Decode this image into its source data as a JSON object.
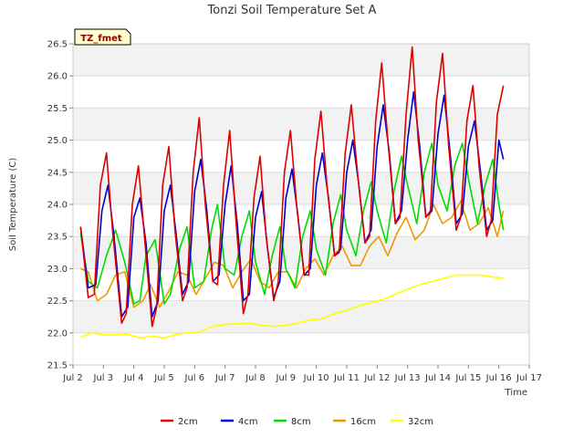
{
  "chart_data": {
    "type": "line",
    "title": "Tonzi Soil Temperature Set A",
    "xlabel": "Time",
    "ylabel": "Soil Temperature (C)",
    "xlim": [
      2,
      17
    ],
    "ylim": [
      21.5,
      26.5
    ],
    "x_ticks": [
      2,
      3,
      4,
      5,
      6,
      7,
      8,
      9,
      10,
      11,
      12,
      13,
      14,
      15,
      16,
      17
    ],
    "x_tick_labels": [
      "Jul 2",
      "Jul 3",
      "Jul 4",
      "Jul 5",
      "Jul 6",
      "Jul 7",
      "Jul 8",
      "Jul 9",
      "Jul 10",
      "Jul 11",
      "Jul 12",
      "Jul 13",
      "Jul 14",
      "Jul 15",
      "Jul 16",
      "Jul 17"
    ],
    "y_ticks": [
      21.5,
      22.0,
      22.5,
      23.0,
      23.5,
      24.0,
      24.5,
      25.0,
      25.5,
      26.0,
      26.5
    ],
    "y_tick_labels": [
      "21.5",
      "22.0",
      "22.5",
      "23.0",
      "23.5",
      "24.0",
      "24.5",
      "25.0",
      "25.5",
      "26.0",
      "26.5"
    ],
    "grid": true,
    "legend_position": "bottom",
    "annotation": "TZ_fmet",
    "series": [
      {
        "name": "2cm",
        "color": "#dd0000",
        "x": [
          2.25,
          2.5,
          2.7,
          2.9,
          3.1,
          3.3,
          3.6,
          3.75,
          3.95,
          4.15,
          4.35,
          4.6,
          4.75,
          4.95,
          5.15,
          5.35,
          5.6,
          5.75,
          5.95,
          6.15,
          6.35,
          6.6,
          6.75,
          6.95,
          7.15,
          7.35,
          7.6,
          7.75,
          7.95,
          8.15,
          8.35,
          8.6,
          8.75,
          8.95,
          9.15,
          9.35,
          9.6,
          9.75,
          9.95,
          10.15,
          10.35,
          10.6,
          10.75,
          10.95,
          11.15,
          11.35,
          11.6,
          11.75,
          11.95,
          12.15,
          12.35,
          12.6,
          12.75,
          12.95,
          13.15,
          13.35,
          13.6,
          13.75,
          13.95,
          14.15,
          14.35,
          14.6,
          14.75,
          14.95,
          15.15,
          15.35,
          15.6,
          15.75,
          15.95,
          16.15
        ],
        "y": [
          23.65,
          22.55,
          22.6,
          24.3,
          24.8,
          23.6,
          22.15,
          22.3,
          24.0,
          24.6,
          23.5,
          22.1,
          22.4,
          24.3,
          24.9,
          23.6,
          22.5,
          22.7,
          24.5,
          25.35,
          24.0,
          22.8,
          22.75,
          24.3,
          25.15,
          23.8,
          22.3,
          22.6,
          24.1,
          24.75,
          23.5,
          22.5,
          22.8,
          24.5,
          25.15,
          24.0,
          22.9,
          22.9,
          24.7,
          25.45,
          24.3,
          23.2,
          23.25,
          24.8,
          25.55,
          24.5,
          23.4,
          23.5,
          25.3,
          26.2,
          25.0,
          23.7,
          23.8,
          25.4,
          26.45,
          25.0,
          23.8,
          23.9,
          25.6,
          26.35,
          24.9,
          23.6,
          23.8,
          25.3,
          25.85,
          24.6,
          23.5,
          23.75,
          25.4,
          25.85
        ]
      },
      {
        "name": "4cm",
        "color": "#0000cc",
        "x": [
          2.25,
          2.5,
          2.75,
          2.95,
          3.15,
          3.35,
          3.6,
          3.8,
          4.0,
          4.2,
          4.4,
          4.6,
          4.8,
          5.0,
          5.2,
          5.4,
          5.6,
          5.8,
          6.0,
          6.2,
          6.4,
          6.6,
          6.8,
          7.0,
          7.2,
          7.4,
          7.6,
          7.8,
          8.0,
          8.2,
          8.4,
          8.6,
          8.8,
          9.0,
          9.2,
          9.4,
          9.6,
          9.8,
          10.0,
          10.2,
          10.4,
          10.6,
          10.8,
          11.0,
          11.2,
          11.4,
          11.6,
          11.8,
          12.0,
          12.2,
          12.4,
          12.6,
          12.8,
          13.0,
          13.2,
          13.4,
          13.6,
          13.8,
          14.0,
          14.2,
          14.4,
          14.6,
          14.8,
          15.0,
          15.2,
          15.4,
          15.6,
          15.8,
          16.0,
          16.15
        ],
        "y": [
          23.65,
          22.7,
          22.75,
          23.9,
          24.3,
          23.5,
          22.25,
          22.4,
          23.8,
          24.1,
          23.4,
          22.25,
          22.5,
          23.9,
          24.3,
          23.5,
          22.6,
          22.8,
          24.2,
          24.7,
          23.9,
          22.8,
          22.9,
          24.0,
          24.6,
          23.7,
          22.5,
          22.6,
          23.8,
          24.2,
          23.3,
          22.55,
          22.8,
          24.1,
          24.55,
          23.8,
          22.9,
          23.0,
          24.3,
          24.8,
          24.1,
          23.2,
          23.3,
          24.5,
          25.0,
          24.3,
          23.4,
          23.6,
          24.9,
          25.55,
          24.8,
          23.7,
          23.9,
          25.0,
          25.75,
          24.9,
          23.8,
          23.9,
          25.1,
          25.7,
          24.8,
          23.7,
          23.85,
          24.9,
          25.3,
          24.5,
          23.6,
          23.75,
          25.0,
          24.7
        ]
      },
      {
        "name": "8cm",
        "color": "#00dd00",
        "x": [
          2.25,
          2.5,
          2.8,
          3.1,
          3.4,
          3.7,
          4.0,
          4.2,
          4.4,
          4.7,
          5.0,
          5.2,
          5.5,
          5.75,
          6.0,
          6.3,
          6.55,
          6.75,
          7.0,
          7.3,
          7.55,
          7.8,
          8.0,
          8.3,
          8.55,
          8.8,
          9.0,
          9.3,
          9.55,
          9.8,
          10.0,
          10.3,
          10.55,
          10.8,
          11.0,
          11.3,
          11.55,
          11.8,
          12.0,
          12.3,
          12.55,
          12.8,
          13.0,
          13.3,
          13.55,
          13.8,
          14.0,
          14.3,
          14.55,
          14.8,
          15.0,
          15.3,
          15.55,
          15.8,
          16.0,
          16.15
        ],
        "y": [
          23.55,
          22.8,
          22.7,
          23.2,
          23.6,
          23.1,
          22.45,
          22.5,
          23.2,
          23.45,
          22.45,
          22.6,
          23.3,
          23.65,
          22.7,
          22.8,
          23.6,
          24.0,
          23.0,
          22.9,
          23.5,
          23.9,
          23.1,
          22.6,
          23.2,
          23.65,
          23.0,
          22.7,
          23.5,
          23.9,
          23.3,
          22.9,
          23.7,
          24.15,
          23.6,
          23.2,
          23.9,
          24.35,
          23.9,
          23.4,
          24.2,
          24.75,
          24.3,
          23.7,
          24.5,
          24.95,
          24.3,
          23.9,
          24.6,
          24.95,
          24.4,
          23.7,
          24.3,
          24.7,
          24.0,
          23.6
        ]
      },
      {
        "name": "16cm",
        "color": "#ee9900",
        "x": [
          2.25,
          2.5,
          2.8,
          3.1,
          3.4,
          3.7,
          4.0,
          4.3,
          4.55,
          4.85,
          5.15,
          5.45,
          5.75,
          6.05,
          6.35,
          6.65,
          6.95,
          7.25,
          7.55,
          7.85,
          8.15,
          8.45,
          8.75,
          9.05,
          9.35,
          9.65,
          9.95,
          10.25,
          10.55,
          10.85,
          11.15,
          11.45,
          11.75,
          12.05,
          12.35,
          12.65,
          12.95,
          13.25,
          13.55,
          13.85,
          14.15,
          14.45,
          14.75,
          15.05,
          15.35,
          15.65,
          15.95,
          16.15
        ],
        "y": [
          23.0,
          22.95,
          22.5,
          22.6,
          22.9,
          22.95,
          22.4,
          22.5,
          22.75,
          22.4,
          22.65,
          22.95,
          22.9,
          22.6,
          22.85,
          23.1,
          23.05,
          22.7,
          22.95,
          23.15,
          22.8,
          22.7,
          22.95,
          22.95,
          22.7,
          23.0,
          23.15,
          22.9,
          23.2,
          23.35,
          23.05,
          23.05,
          23.35,
          23.5,
          23.2,
          23.55,
          23.8,
          23.45,
          23.6,
          24.0,
          23.7,
          23.8,
          24.05,
          23.6,
          23.7,
          23.95,
          23.5,
          23.9
        ]
      },
      {
        "name": "32cm",
        "color": "#ffff00",
        "x": [
          2.25,
          2.6,
          3.0,
          3.4,
          3.8,
          4.2,
          4.6,
          5.0,
          5.4,
          5.8,
          6.2,
          6.6,
          7.0,
          7.4,
          7.8,
          8.2,
          8.6,
          9.0,
          9.4,
          9.8,
          10.2,
          10.6,
          11.0,
          11.4,
          11.8,
          12.2,
          12.6,
          13.0,
          13.4,
          13.8,
          14.2,
          14.6,
          15.0,
          15.4,
          15.8,
          16.15
        ],
        "y": [
          21.93,
          22.0,
          21.97,
          21.97,
          21.98,
          21.92,
          21.95,
          21.92,
          21.98,
          22.0,
          22.02,
          22.1,
          22.13,
          22.14,
          22.15,
          22.12,
          22.1,
          22.12,
          22.15,
          22.2,
          22.22,
          22.3,
          22.35,
          22.42,
          22.47,
          22.52,
          22.6,
          22.68,
          22.75,
          22.8,
          22.85,
          22.9,
          22.9,
          22.9,
          22.87,
          22.85
        ]
      }
    ]
  }
}
